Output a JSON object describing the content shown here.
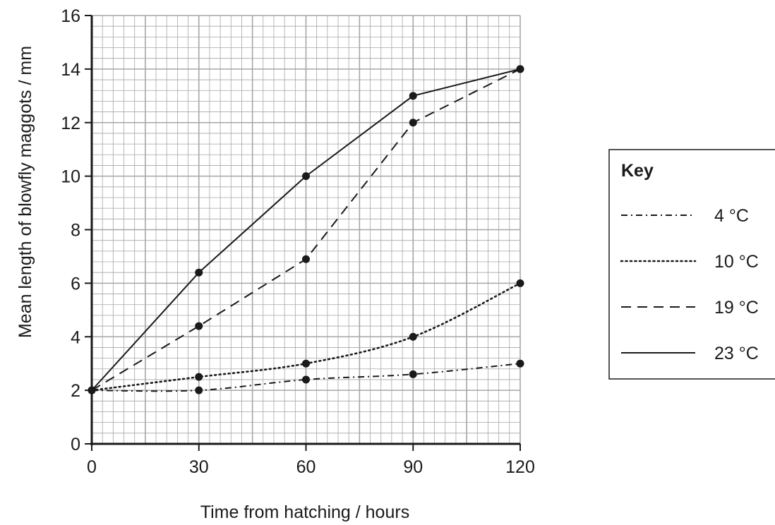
{
  "chart_data": {
    "type": "line",
    "xlabel": "Time from hatching / hours",
    "ylabel": "Mean length of  blowfly maggots / mm",
    "x": [
      0,
      30,
      60,
      90,
      120
    ],
    "xticks": [
      "0",
      "30",
      "60",
      "90",
      "120"
    ],
    "yticks": [
      "0",
      "2",
      "4",
      "6",
      "8",
      "10",
      "12",
      "14",
      "16"
    ],
    "xlim": [
      0,
      120
    ],
    "ylim": [
      0,
      16
    ],
    "grid": true,
    "legend_title": "Key",
    "legend_position": "right",
    "series": [
      {
        "name": "4 °C",
        "style": "dash-dot",
        "values": [
          2,
          2,
          2.4,
          2.6,
          3
        ]
      },
      {
        "name": "10 °C",
        "style": "dotted",
        "values": [
          2,
          2.5,
          3,
          4,
          6
        ]
      },
      {
        "name": "19 °C",
        "style": "dashed",
        "values": [
          2,
          4.4,
          6.9,
          12,
          14
        ]
      },
      {
        "name": "23 °C",
        "style": "solid",
        "values": [
          2,
          6.4,
          10,
          13,
          14
        ]
      }
    ],
    "colors": {
      "line": "#1a1a1a",
      "grid": "#a6a6a6",
      "background": "#ffffff"
    }
  }
}
